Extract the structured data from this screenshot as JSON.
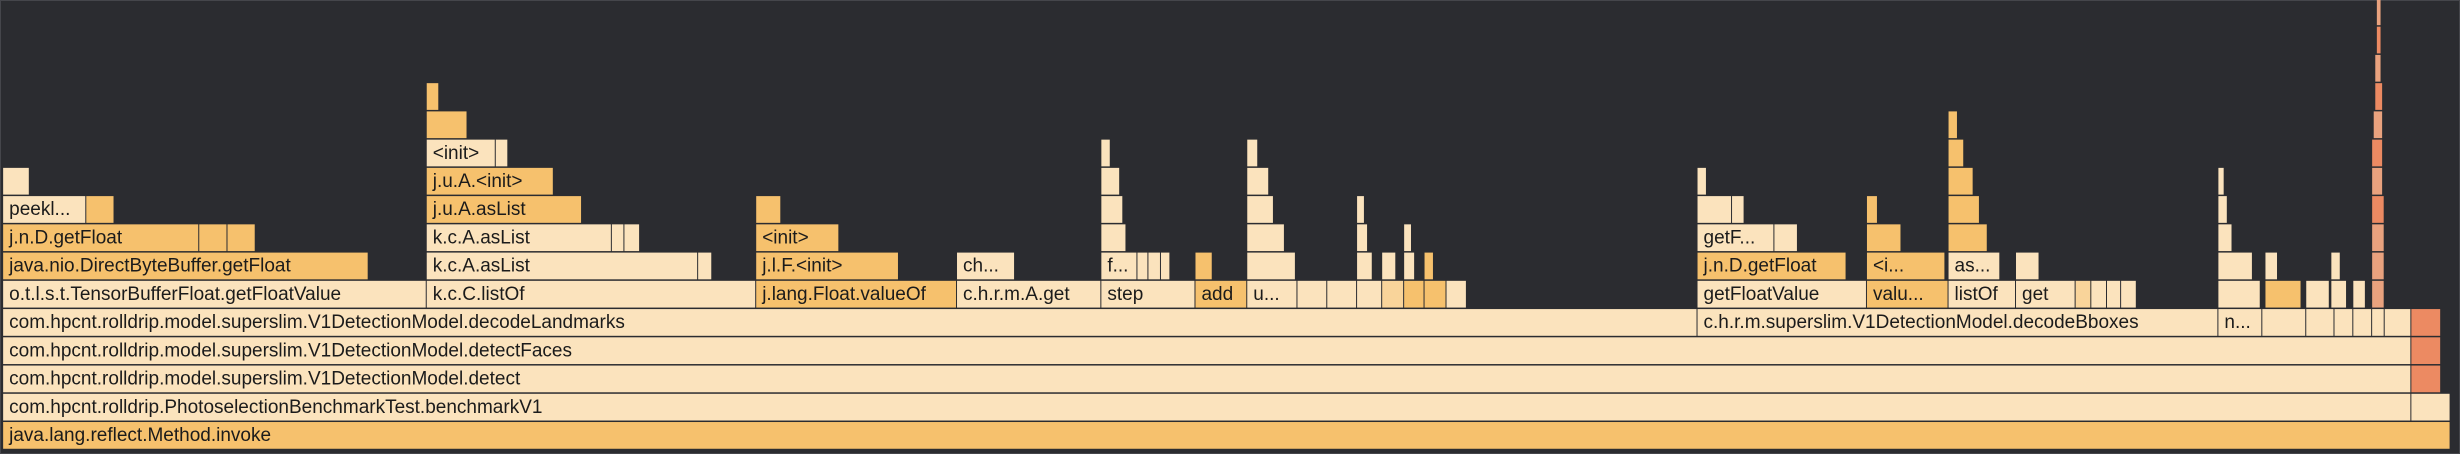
{
  "frames": [
    {
      "label": "java.lang.reflect.Method.invoke"
    },
    {
      "label": "com.hpcnt.rolldrip.PhotoselectionBenchmarkTest.benchmarkV1"
    },
    {
      "label": "com.hpcnt.rolldrip.model.superslim.V1DetectionModel.detect"
    },
    {
      "label": "com.hpcnt.rolldrip.model.superslim.V1DetectionModel.detectFaces"
    },
    {
      "label": "com.hpcnt.rolldrip.model.superslim.V1DetectionModel.decodeLandmarks"
    },
    {
      "label": "c.h.r.m.superslim.V1DetectionModel.decodeBboxes"
    },
    {
      "label": "n..."
    },
    {
      "label": "o.t.l.s.t.TensorBufferFloat.getFloatValue"
    },
    {
      "label": "k.c.C.listOf"
    },
    {
      "label": "j.lang.Float.valueOf"
    },
    {
      "label": "c.h.r.m.A.get"
    },
    {
      "label": "step"
    },
    {
      "label": "add"
    },
    {
      "label": "u..."
    },
    {
      "label": "getFloatValue"
    },
    {
      "label": "valu..."
    },
    {
      "label": "listOf"
    },
    {
      "label": "get"
    },
    {
      "label": "java.nio.DirectByteBuffer.getFloat"
    },
    {
      "label": "k.c.A.asList"
    },
    {
      "label": "j.l.F.<init>"
    },
    {
      "label": "ch..."
    },
    {
      "label": "f..."
    },
    {
      "label": "j.n.D.getFloat"
    },
    {
      "label": "<i..."
    },
    {
      "label": "as..."
    },
    {
      "label": "j.n.D.getFloat"
    },
    {
      "label": "k.c.A.asList"
    },
    {
      "label": "<init>"
    },
    {
      "label": "getF..."
    },
    {
      "label": "peekl..."
    },
    {
      "label": "j.u.A.asList"
    },
    {
      "label": "j.u.A.<init>"
    },
    {
      "label": "<init>"
    }
  ]
}
